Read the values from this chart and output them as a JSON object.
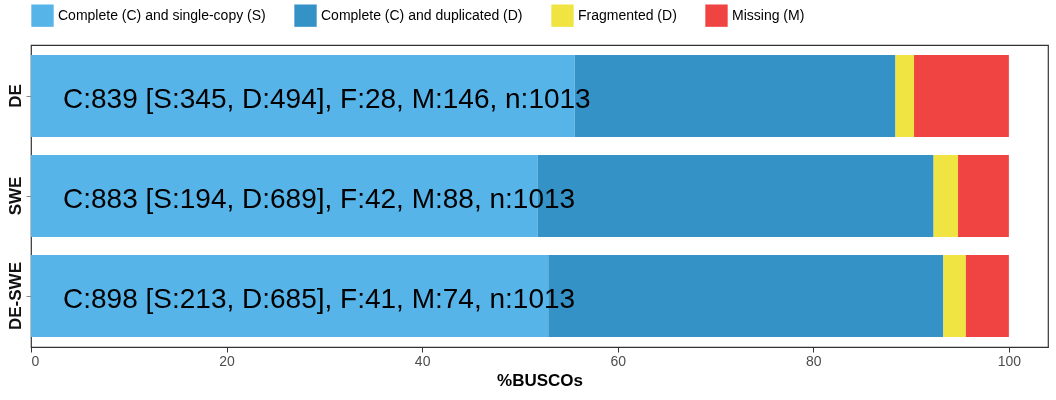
{
  "chart_data": {
    "type": "bar",
    "orientation": "horizontal",
    "stacked": true,
    "xlabel": "%BUSCOs",
    "categories": [
      "DE",
      "SWE",
      "DE-SWE"
    ],
    "series": [
      {
        "name": "Complete (C) and single-copy (S)",
        "color": "#56b4e9",
        "values": [
          55.6,
          51.8,
          52.9
        ]
      },
      {
        "name": "Complete (C) and duplicated (D)",
        "color": "#3492c7",
        "values": [
          32.8,
          40.5,
          40.4
        ]
      },
      {
        "name": "Fragmented (D)",
        "color": "#f0e442",
        "values": [
          1.9,
          2.5,
          2.3
        ]
      },
      {
        "name": "Missing (M)",
        "color": "#f04442",
        "values": [
          9.7,
          5.2,
          4.4
        ]
      }
    ],
    "xlim": [
      0,
      104
    ],
    "xticks": [
      0,
      20,
      40,
      60,
      80,
      100
    ],
    "grid": false,
    "legend": "top",
    "annotations": [
      {
        "text": "C:839 [S:345, D:494], F:28, M:146, n:1013",
        "y": "DE"
      },
      {
        "text": "C:883 [S:194, D:689], F:42, M:88, n:1013",
        "y": "SWE"
      },
      {
        "text": "C:898 [S:213, D:685], F:41, M:74, n:1013",
        "y": "DE-SWE"
      }
    ]
  }
}
